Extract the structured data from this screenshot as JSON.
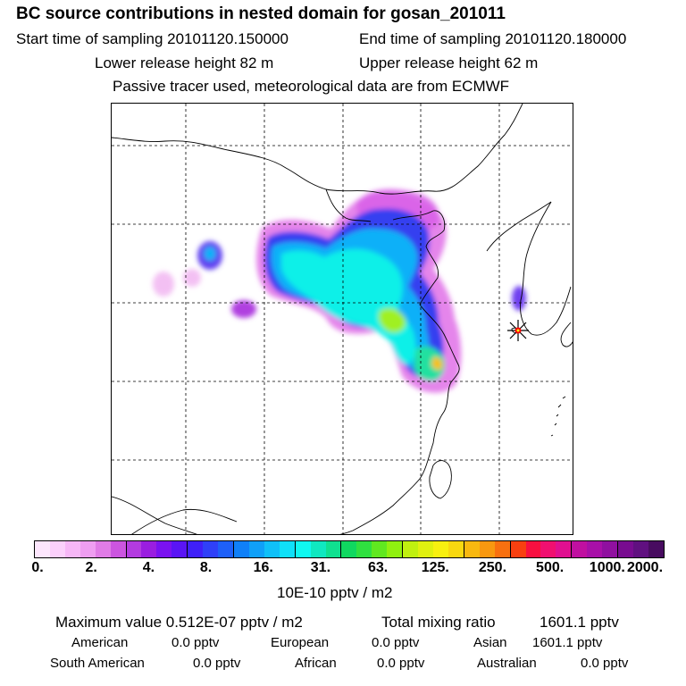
{
  "header": {
    "title": "BC  source contributions in nested domain for gosan_201011",
    "start_label": "Start time of sampling 20101120.150000",
    "end_label": "End time of sampling 20101120.180000",
    "lower_label": "Lower release height   82 m",
    "upper_label": "Upper release height   62 m",
    "tracer_line": "Passive tracer used, meteorological data are from ECMWF"
  },
  "map": {
    "layers": [
      "coastlines",
      "country-borders",
      "dashed-graticule",
      "concentration-field",
      "receptor-marker"
    ],
    "receptor": "gosan",
    "colors": {
      "frame": "#000000",
      "graticule": "#000000",
      "receptor": "#ff0000"
    }
  },
  "colorbar": {
    "colors": [
      "#fde6fd",
      "#fbd0fb",
      "#f6b7f6",
      "#ef9ef1",
      "#e07ce6",
      "#cc55e0",
      "#b33be0",
      "#9a1ee0",
      "#7a12f0",
      "#5a14f5",
      "#3f20f8",
      "#2f40f8",
      "#1e60f8",
      "#1080f8",
      "#10a0f8",
      "#10c0f8",
      "#10e0f8",
      "#10f8f0",
      "#10e8c0",
      "#10e090",
      "#10d860",
      "#30e040",
      "#60e820",
      "#90f010",
      "#c0f010",
      "#e0f010",
      "#f8f010",
      "#f8d810",
      "#f8b810",
      "#f89810",
      "#f87010",
      "#f84010",
      "#f81040",
      "#f01070",
      "#e01090",
      "#c010a0",
      "#a810a8",
      "#9010a0",
      "#780c90",
      "#601080",
      "#480c60"
    ],
    "tick_labels": [
      "0.",
      "2.",
      "4.",
      "8.",
      "16.",
      "31.",
      "63.",
      "125.",
      "250.",
      "500.",
      "1000.",
      "2000."
    ],
    "units": "10E-10 pptv / m2"
  },
  "stats": {
    "max_label": "Maximum value  0.512E-07 pptv / m2",
    "total_label": "Total mixing ratio",
    "total_value": "1601.1 pptv",
    "regions_row1": [
      {
        "name": "American",
        "value": "0.0 pptv"
      },
      {
        "name": "European",
        "value": "0.0 pptv"
      },
      {
        "name": "Asian",
        "value": "1601.1 pptv"
      }
    ],
    "regions_row2": [
      {
        "name": "South American",
        "value": "0.0 pptv"
      },
      {
        "name": "African",
        "value": "0.0 pptv"
      },
      {
        "name": "Australian",
        "value": "0.0 pptv"
      }
    ]
  }
}
